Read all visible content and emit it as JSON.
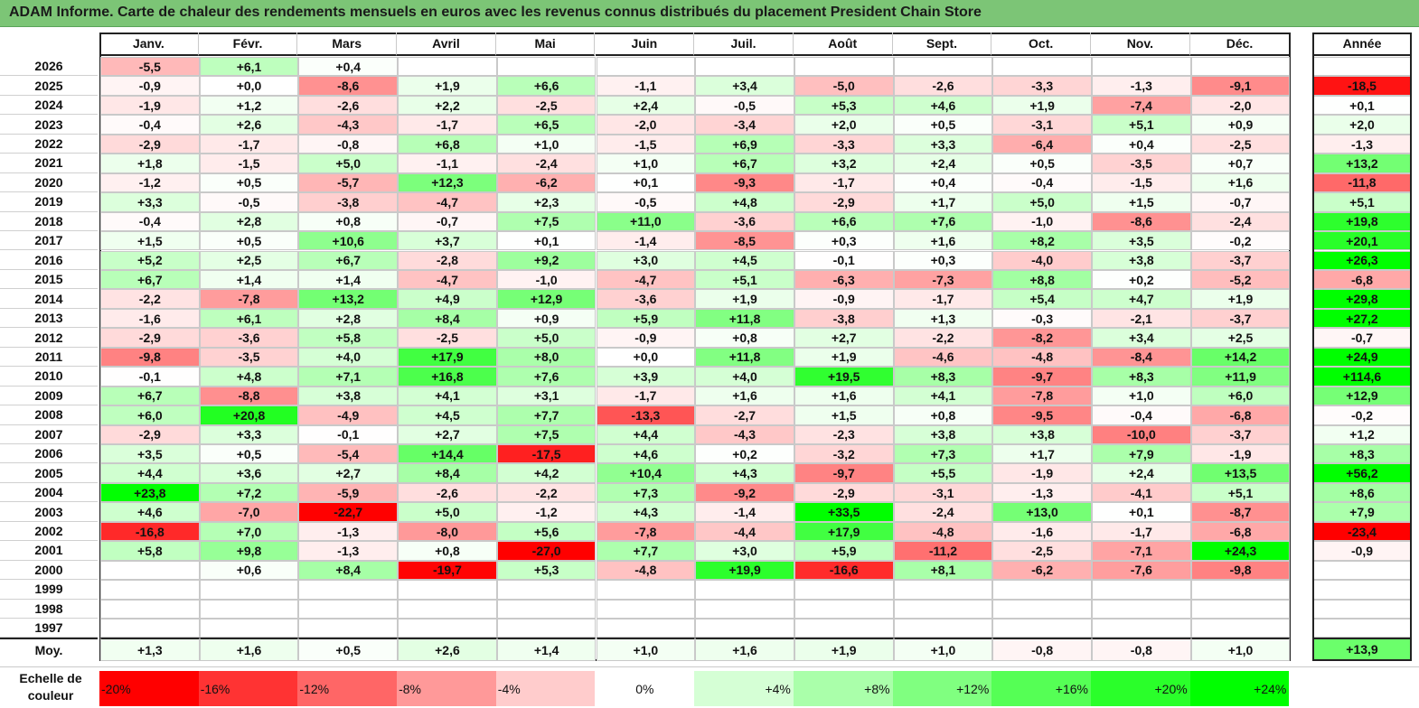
{
  "title": "ADAM Informe. Carte de chaleur des rendements mensuels en euros avec les revenus connus distribués du placement President Chain Store",
  "colors": {
    "title_bg": "#7cc576",
    "neg_max": "#ff0000",
    "neutral": "#ffffff",
    "pos_max": "#00ff00"
  },
  "chart_data": {
    "type": "heatmap",
    "title": "ADAM Informe. Carte de chaleur des rendements mensuels en euros avec les revenus connus distribués du placement President Chain Store",
    "columns": [
      "Janv.",
      "Févr.",
      "Mars",
      "Avril",
      "Mai",
      "Juin",
      "Juil.",
      "Août",
      "Sept.",
      "Oct.",
      "Nov.",
      "Déc."
    ],
    "annual_header": "Année",
    "average_label": "Moy.",
    "rows": [
      {
        "year": "2026",
        "months": [
          "-5,5",
          "+6,1",
          "+0,4",
          "",
          "",
          "",
          "",
          "",
          "",
          "",
          "",
          ""
        ],
        "annual": ""
      },
      {
        "year": "2025",
        "months": [
          "-0,9",
          "+0,0",
          "-8,6",
          "+1,9",
          "+6,6",
          "-1,1",
          "+3,4",
          "-5,0",
          "-2,6",
          "-3,3",
          "-1,3",
          "-9,1"
        ],
        "annual": "-18,5"
      },
      {
        "year": "2024",
        "months": [
          "-1,9",
          "+1,2",
          "-2,6",
          "+2,2",
          "-2,5",
          "+2,4",
          "-0,5",
          "+5,3",
          "+4,6",
          "+1,9",
          "-7,4",
          "-2,0"
        ],
        "annual": "+0,1"
      },
      {
        "year": "2023",
        "months": [
          "-0,4",
          "+2,6",
          "-4,3",
          "-1,7",
          "+6,5",
          "-2,0",
          "-3,4",
          "+2,0",
          "+0,5",
          "-3,1",
          "+5,1",
          "+0,9"
        ],
        "annual": "+2,0"
      },
      {
        "year": "2022",
        "months": [
          "-2,9",
          "-1,7",
          "-0,8",
          "+6,8",
          "+1,0",
          "-1,5",
          "+6,9",
          "-3,3",
          "+3,3",
          "-6,4",
          "+0,4",
          "-2,5"
        ],
        "annual": "-1,3"
      },
      {
        "year": "2021",
        "months": [
          "+1,8",
          "-1,5",
          "+5,0",
          "-1,1",
          "-2,4",
          "+1,0",
          "+6,7",
          "+3,2",
          "+2,4",
          "+0,5",
          "-3,5",
          "+0,7"
        ],
        "annual": "+13,2"
      },
      {
        "year": "2020",
        "months": [
          "-1,2",
          "+0,5",
          "-5,7",
          "+12,3",
          "-6,2",
          "+0,1",
          "-9,3",
          "-1,7",
          "+0,4",
          "-0,4",
          "-1,5",
          "+1,6"
        ],
        "annual": "-11,8"
      },
      {
        "year": "2019",
        "months": [
          "+3,3",
          "-0,5",
          "-3,8",
          "-4,7",
          "+2,3",
          "-0,5",
          "+4,8",
          "-2,9",
          "+1,7",
          "+5,0",
          "+1,5",
          "-0,7"
        ],
        "annual": "+5,1"
      },
      {
        "year": "2018",
        "months": [
          "-0,4",
          "+2,8",
          "+0,8",
          "-0,7",
          "+7,5",
          "+11,0",
          "-3,6",
          "+6,6",
          "+7,6",
          "-1,0",
          "-8,6",
          "-2,4"
        ],
        "annual": "+19,8"
      },
      {
        "year": "2017",
        "months": [
          "+1,5",
          "+0,5",
          "+10,6",
          "+3,7",
          "+0,1",
          "-1,4",
          "-8,5",
          "+0,3",
          "+1,6",
          "+8,2",
          "+3,5",
          "-0,2"
        ],
        "annual": "+20,1"
      },
      {
        "year": "2016",
        "months": [
          "+5,2",
          "+2,5",
          "+6,7",
          "-2,8",
          "+9,2",
          "+3,0",
          "+4,5",
          "-0,1",
          "+0,3",
          "-4,0",
          "+3,8",
          "-3,7"
        ],
        "annual": "+26,3"
      },
      {
        "year": "2015",
        "months": [
          "+6,7",
          "+1,4",
          "+1,4",
          "-4,7",
          "-1,0",
          "-4,7",
          "+5,1",
          "-6,3",
          "-7,3",
          "+8,8",
          "+0,2",
          "-5,2"
        ],
        "annual": "-6,8"
      },
      {
        "year": "2014",
        "months": [
          "-2,2",
          "-7,8",
          "+13,2",
          "+4,9",
          "+12,9",
          "-3,6",
          "+1,9",
          "-0,9",
          "-1,7",
          "+5,4",
          "+4,7",
          "+1,9"
        ],
        "annual": "+29,8"
      },
      {
        "year": "2013",
        "months": [
          "-1,6",
          "+6,1",
          "+2,8",
          "+8,4",
          "+0,9",
          "+5,9",
          "+11,8",
          "-3,8",
          "+1,3",
          "-0,3",
          "-2,1",
          "-3,7"
        ],
        "annual": "+27,2"
      },
      {
        "year": "2012",
        "months": [
          "-2,9",
          "-3,6",
          "+5,8",
          "-2,5",
          "+5,0",
          "-0,9",
          "+0,8",
          "+2,7",
          "-2,2",
          "-8,2",
          "+3,4",
          "+2,5"
        ],
        "annual": "-0,7"
      },
      {
        "year": "2011",
        "months": [
          "-9,8",
          "-3,5",
          "+4,0",
          "+17,9",
          "+8,0",
          "+0,0",
          "+11,8",
          "+1,9",
          "-4,6",
          "-4,8",
          "-8,4",
          "+14,2"
        ],
        "annual": "+24,9"
      },
      {
        "year": "2010",
        "months": [
          "-0,1",
          "+4,8",
          "+7,1",
          "+16,8",
          "+7,6",
          "+3,9",
          "+4,0",
          "+19,5",
          "+8,3",
          "-9,7",
          "+8,3",
          "+11,9"
        ],
        "annual": "+114,6"
      },
      {
        "year": "2009",
        "months": [
          "+6,7",
          "-8,8",
          "+3,8",
          "+4,1",
          "+3,1",
          "-1,7",
          "+1,6",
          "+1,6",
          "+4,1",
          "-7,8",
          "+1,0",
          "+6,0"
        ],
        "annual": "+12,9"
      },
      {
        "year": "2008",
        "months": [
          "+6,0",
          "+20,8",
          "-4,9",
          "+4,5",
          "+7,7",
          "-13,3",
          "-2,7",
          "+1,5",
          "+0,8",
          "-9,5",
          "-0,4",
          "-6,8"
        ],
        "annual": "-0,2"
      },
      {
        "year": "2007",
        "months": [
          "-2,9",
          "+3,3",
          "-0,1",
          "+2,7",
          "+7,5",
          "+4,4",
          "-4,3",
          "-2,3",
          "+3,8",
          "+3,8",
          "-10,0",
          "-3,7"
        ],
        "annual": "+1,2"
      },
      {
        "year": "2006",
        "months": [
          "+3,5",
          "+0,5",
          "-5,4",
          "+14,4",
          "-17,5",
          "+4,6",
          "+0,2",
          "-3,2",
          "+7,3",
          "+1,7",
          "+7,9",
          "-1,9"
        ],
        "annual": "+8,3"
      },
      {
        "year": "2005",
        "months": [
          "+4,4",
          "+3,6",
          "+2,7",
          "+8,4",
          "+4,2",
          "+10,4",
          "+4,3",
          "-9,7",
          "+5,5",
          "-1,9",
          "+2,4",
          "+13,5"
        ],
        "annual": "+56,2"
      },
      {
        "year": "2004",
        "months": [
          "+23,8",
          "+7,2",
          "-5,9",
          "-2,6",
          "-2,2",
          "+7,3",
          "-9,2",
          "-2,9",
          "-3,1",
          "-1,3",
          "-4,1",
          "+5,1"
        ],
        "annual": "+8,6"
      },
      {
        "year": "2003",
        "months": [
          "+4,6",
          "-7,0",
          "-22,7",
          "+5,0",
          "-1,2",
          "+4,3",
          "-1,4",
          "+33,5",
          "-2,4",
          "+13,0",
          "+0,1",
          "-8,7"
        ],
        "annual": "+7,9"
      },
      {
        "year": "2002",
        "months": [
          "-16,8",
          "+7,0",
          "-1,3",
          "-8,0",
          "+5,6",
          "-7,8",
          "-4,4",
          "+17,9",
          "-4,8",
          "-1,6",
          "-1,7",
          "-6,8"
        ],
        "annual": "-23,4"
      },
      {
        "year": "2001",
        "months": [
          "+5,8",
          "+9,8",
          "-1,3",
          "+0,8",
          "-27,0",
          "+7,7",
          "+3,0",
          "+5,9",
          "-11,2",
          "-2,5",
          "-7,1",
          "+24,3"
        ],
        "annual": "-0,9"
      },
      {
        "year": "2000",
        "months": [
          "",
          "+0,6",
          "+8,4",
          "-19,7",
          "+5,3",
          "-4,8",
          "+19,9",
          "-16,6",
          "+8,1",
          "-6,2",
          "-7,6",
          "-9,8"
        ],
        "annual": ""
      },
      {
        "year": "1999",
        "months": [
          "",
          "",
          "",
          "",
          "",
          "",
          "",
          "",
          "",
          "",
          "",
          ""
        ],
        "annual": ""
      },
      {
        "year": "1998",
        "months": [
          "",
          "",
          "",
          "",
          "",
          "",
          "",
          "",
          "",
          "",
          "",
          ""
        ],
        "annual": ""
      },
      {
        "year": "1997",
        "months": [
          "",
          "",
          "",
          "",
          "",
          "",
          "",
          "",
          "",
          "",
          "",
          ""
        ],
        "annual": ""
      }
    ],
    "average": {
      "months": [
        "+1,3",
        "+1,6",
        "+0,5",
        "+2,6",
        "+1,4",
        "+1,0",
        "+1,6",
        "+1,9",
        "+1,0",
        "-0,8",
        "-0,8",
        "+1,0"
      ],
      "annual": "+13,9"
    },
    "scale_label": "Echelle de couleur",
    "scale": [
      {
        "label": "-20%",
        "value": -20
      },
      {
        "label": "-16%",
        "value": -16
      },
      {
        "label": "-12%",
        "value": -12
      },
      {
        "label": "-8%",
        "value": -8
      },
      {
        "label": "-4%",
        "value": -4
      },
      {
        "label": "0%",
        "value": 0
      },
      {
        "label": "+4%",
        "value": 4
      },
      {
        "label": "+8%",
        "value": 8
      },
      {
        "label": "+12%",
        "value": 12
      },
      {
        "label": "+16%",
        "value": 16
      },
      {
        "label": "+20%",
        "value": 20
      },
      {
        "label": "+24%",
        "value": 24
      }
    ]
  }
}
